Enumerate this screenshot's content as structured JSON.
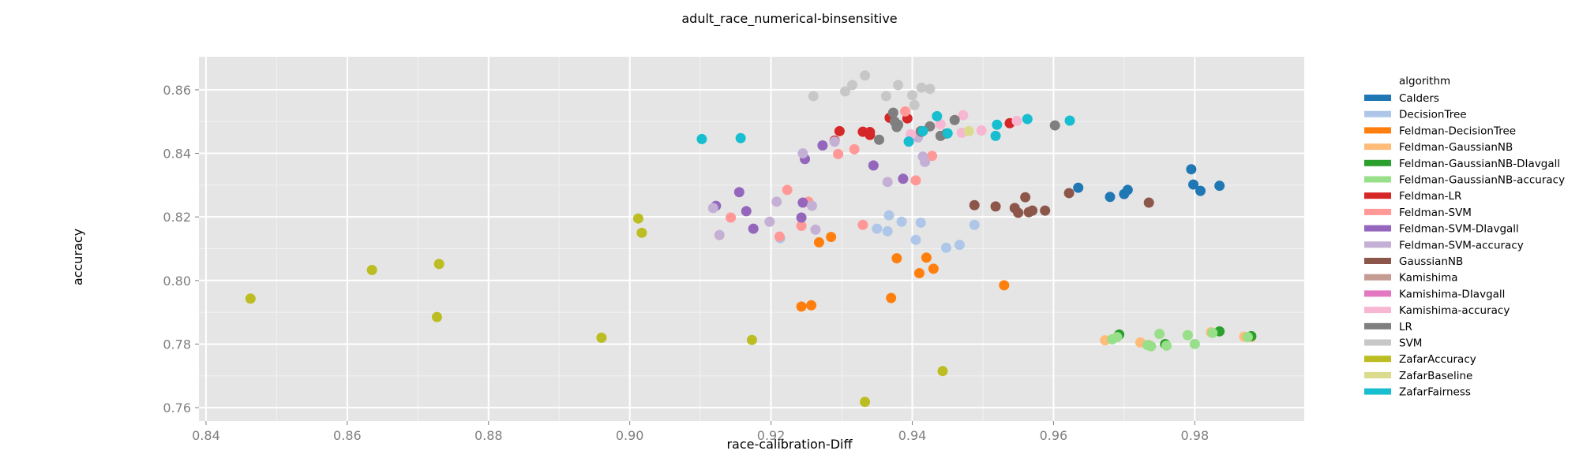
{
  "chart_data": {
    "type": "scatter",
    "title": "adult_race_numerical-binsensitive",
    "xlabel": "race-calibration-Diff",
    "ylabel": "accuracy",
    "xlim": [
      0.839,
      0.9955
    ],
    "ylim": [
      0.7558,
      0.8704
    ],
    "xticks": [
      "0.84",
      "0.86",
      "0.88",
      "0.90",
      "0.92",
      "0.94",
      "0.96",
      "0.98"
    ],
    "xtick_values": [
      0.84,
      0.86,
      0.88,
      0.9,
      0.92,
      0.94,
      0.96,
      0.98
    ],
    "yticks": [
      "0.76",
      "0.78",
      "0.80",
      "0.82",
      "0.84",
      "0.86"
    ],
    "ytick_values": [
      0.76,
      0.78,
      0.8,
      0.82,
      0.84,
      0.86
    ],
    "grid": true,
    "legend_title": "algorithm",
    "legend_position": "right",
    "series": [
      {
        "name": "Calders",
        "color": "#1f77b4",
        "points": [
          [
            0.9635,
            0.8292
          ],
          [
            0.968,
            0.8263
          ],
          [
            0.97,
            0.8272
          ],
          [
            0.9705,
            0.8285
          ],
          [
            0.9795,
            0.835
          ],
          [
            0.9798,
            0.8302
          ],
          [
            0.9808,
            0.8282
          ],
          [
            0.9835,
            0.8298
          ]
        ]
      },
      {
        "name": "DecisionTree",
        "color": "#aec7e8",
        "points": [
          [
            0.9213,
            0.8133
          ],
          [
            0.935,
            0.8163
          ],
          [
            0.9365,
            0.8155
          ],
          [
            0.9367,
            0.8205
          ],
          [
            0.9385,
            0.8185
          ],
          [
            0.9405,
            0.8128
          ],
          [
            0.9412,
            0.8182
          ],
          [
            0.9448,
            0.8103
          ],
          [
            0.9467,
            0.8112
          ],
          [
            0.9488,
            0.8175
          ]
        ]
      },
      {
        "name": "Feldman-DecisionTree",
        "color": "#ff7f0e",
        "points": [
          [
            0.9243,
            0.7918
          ],
          [
            0.9257,
            0.7922
          ],
          [
            0.9268,
            0.812
          ],
          [
            0.9285,
            0.8137
          ],
          [
            0.937,
            0.7945
          ],
          [
            0.9378,
            0.807
          ],
          [
            0.941,
            0.8023
          ],
          [
            0.942,
            0.8072
          ],
          [
            0.943,
            0.8037
          ],
          [
            0.953,
            0.7985
          ]
        ]
      },
      {
        "name": "Feldman-GaussianNB",
        "color": "#ffbb78",
        "points": [
          [
            0.9673,
            0.7812
          ],
          [
            0.9723,
            0.7805
          ],
          [
            0.9735,
            0.7797
          ],
          [
            0.9823,
            0.7837
          ],
          [
            0.987,
            0.7823
          ],
          [
            0.988,
            0.7822
          ]
        ]
      },
      {
        "name": "Feldman-GaussianNB-DIavgall",
        "color": "#2ca02c",
        "points": [
          [
            0.9693,
            0.783
          ],
          [
            0.9758,
            0.78
          ],
          [
            0.9835,
            0.784
          ],
          [
            0.988,
            0.7825
          ]
        ]
      },
      {
        "name": "Feldman-GaussianNB-accuracy",
        "color": "#98df8a",
        "points": [
          [
            0.9683,
            0.7815
          ],
          [
            0.969,
            0.7822
          ],
          [
            0.9733,
            0.7797
          ],
          [
            0.9738,
            0.7793
          ],
          [
            0.975,
            0.7832
          ],
          [
            0.976,
            0.7795
          ],
          [
            0.979,
            0.7828
          ],
          [
            0.98,
            0.78
          ],
          [
            0.9825,
            0.7835
          ],
          [
            0.9875,
            0.7822
          ]
        ]
      },
      {
        "name": "Feldman-LR",
        "color": "#d62728",
        "points": [
          [
            0.929,
            0.844
          ],
          [
            0.9297,
            0.847
          ],
          [
            0.933,
            0.8468
          ],
          [
            0.934,
            0.8467
          ],
          [
            0.934,
            0.8458
          ],
          [
            0.9368,
            0.8512
          ],
          [
            0.9393,
            0.851
          ],
          [
            0.9538,
            0.8495
          ]
        ]
      },
      {
        "name": "Feldman-SVM",
        "color": "#ff9896",
        "points": [
          [
            0.9143,
            0.8198
          ],
          [
            0.9212,
            0.8138
          ],
          [
            0.9223,
            0.8285
          ],
          [
            0.9243,
            0.8172
          ],
          [
            0.9253,
            0.8248
          ],
          [
            0.9295,
            0.8398
          ],
          [
            0.9318,
            0.8413
          ],
          [
            0.933,
            0.8175
          ],
          [
            0.939,
            0.8532
          ],
          [
            0.9405,
            0.8315
          ],
          [
            0.9428,
            0.8392
          ]
        ]
      },
      {
        "name": "Feldman-SVM-DIavgall",
        "color": "#9467bd",
        "points": [
          [
            0.9122,
            0.8235
          ],
          [
            0.9155,
            0.8278
          ],
          [
            0.9165,
            0.8218
          ],
          [
            0.9175,
            0.8163
          ],
          [
            0.9243,
            0.8198
          ],
          [
            0.9245,
            0.8245
          ],
          [
            0.9248,
            0.8382
          ],
          [
            0.9273,
            0.8425
          ],
          [
            0.9345,
            0.8362
          ],
          [
            0.9387,
            0.832
          ]
        ]
      },
      {
        "name": "Feldman-SVM-accuracy",
        "color": "#c5b0d5",
        "points": [
          [
            0.9118,
            0.8228
          ],
          [
            0.9127,
            0.8143
          ],
          [
            0.9198,
            0.8185
          ],
          [
            0.9208,
            0.8248
          ],
          [
            0.9245,
            0.84
          ],
          [
            0.9258,
            0.8235
          ],
          [
            0.9263,
            0.816
          ],
          [
            0.929,
            0.8437
          ],
          [
            0.9365,
            0.831
          ],
          [
            0.9415,
            0.839
          ],
          [
            0.9418,
            0.8373
          ],
          [
            0.9408,
            0.845
          ]
        ]
      },
      {
        "name": "GaussianNB",
        "color": "#8c564b",
        "points": [
          [
            0.9488,
            0.8237
          ],
          [
            0.9518,
            0.8233
          ],
          [
            0.9545,
            0.8228
          ],
          [
            0.955,
            0.8213
          ],
          [
            0.956,
            0.8262
          ],
          [
            0.9565,
            0.8215
          ],
          [
            0.957,
            0.822
          ],
          [
            0.9588,
            0.822
          ],
          [
            0.9622,
            0.8275
          ],
          [
            0.9735,
            0.8245
          ]
        ]
      },
      {
        "name": "Kamishima",
        "color": "#c49c94",
        "points": []
      },
      {
        "name": "Kamishima-DIavgall",
        "color": "#e377c2",
        "points": []
      },
      {
        "name": "Kamishima-accuracy",
        "color": "#f7b6d2",
        "points": [
          [
            0.9398,
            0.846
          ],
          [
            0.944,
            0.8492
          ],
          [
            0.947,
            0.8465
          ],
          [
            0.9472,
            0.852
          ],
          [
            0.9498,
            0.8472
          ],
          [
            0.9548,
            0.8502
          ]
        ]
      },
      {
        "name": "LR",
        "color": "#7f7f7f",
        "points": [
          [
            0.9353,
            0.8443
          ],
          [
            0.9373,
            0.8528
          ],
          [
            0.9375,
            0.85
          ],
          [
            0.9378,
            0.8483
          ],
          [
            0.938,
            0.849
          ],
          [
            0.9412,
            0.847
          ],
          [
            0.9413,
            0.8468
          ],
          [
            0.9425,
            0.8485
          ],
          [
            0.944,
            0.8455
          ],
          [
            0.9448,
            0.8462
          ],
          [
            0.946,
            0.8505
          ],
          [
            0.9602,
            0.8488
          ]
        ]
      },
      {
        "name": "SVM",
        "color": "#c7c7c7",
        "points": [
          [
            0.926,
            0.858
          ],
          [
            0.9305,
            0.8595
          ],
          [
            0.9315,
            0.8615
          ],
          [
            0.9333,
            0.8645
          ],
          [
            0.9363,
            0.858
          ],
          [
            0.938,
            0.8615
          ],
          [
            0.94,
            0.8583
          ],
          [
            0.9403,
            0.8552
          ],
          [
            0.9413,
            0.8607
          ],
          [
            0.9425,
            0.8603
          ]
        ]
      },
      {
        "name": "ZafarAccuracy",
        "color": "#bcbd22",
        "points": [
          [
            0.8463,
            0.7943
          ],
          [
            0.8635,
            0.8033
          ],
          [
            0.8727,
            0.7885
          ],
          [
            0.873,
            0.8052
          ],
          [
            0.896,
            0.782
          ],
          [
            0.9012,
            0.8195
          ],
          [
            0.9017,
            0.815
          ],
          [
            0.9173,
            0.7813
          ],
          [
            0.9333,
            0.7618
          ],
          [
            0.9443,
            0.7715
          ]
        ]
      },
      {
        "name": "ZafarBaseline",
        "color": "#dbdb8d",
        "points": [
          [
            0.948,
            0.847
          ]
        ]
      },
      {
        "name": "ZafarFairness",
        "color": "#17becf",
        "points": [
          [
            0.9102,
            0.8445
          ],
          [
            0.9157,
            0.8448
          ],
          [
            0.9395,
            0.8437
          ],
          [
            0.9415,
            0.847
          ],
          [
            0.9435,
            0.8517
          ],
          [
            0.945,
            0.8463
          ],
          [
            0.9518,
            0.8455
          ],
          [
            0.952,
            0.849
          ],
          [
            0.9563,
            0.8508
          ],
          [
            0.9623,
            0.8503
          ]
        ]
      }
    ]
  }
}
